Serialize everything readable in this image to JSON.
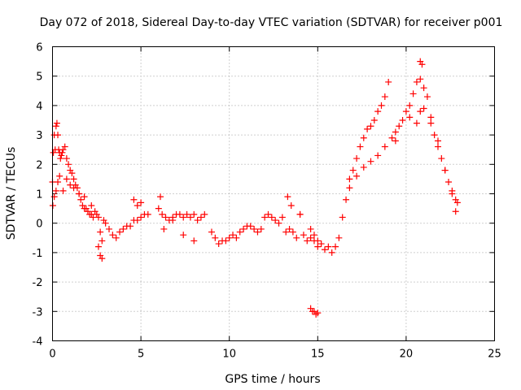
{
  "chart_data": {
    "type": "scatter",
    "title": "Day 072 of 2018, Sidereal Day-to-day VTEC variation (SDTVAR) for receiver p001",
    "xlabel": "GPS time / hours",
    "ylabel": "SDTVAR / TECUs",
    "xlim": [
      0,
      25
    ],
    "ylim": [
      -4,
      6
    ],
    "x_ticks": [
      "0",
      "5",
      "10",
      "15",
      "20",
      "25"
    ],
    "y_ticks": [
      "-4",
      "-3",
      "-2",
      "-1",
      "0",
      "1",
      "2",
      "3",
      "4",
      "5",
      "6"
    ],
    "grid": true,
    "marker": "+",
    "series_color": "#ff0000",
    "series": [
      {
        "name": "SDTVAR",
        "x": [
          0.0,
          0.05,
          0.1,
          0.15,
          0.2,
          0.25,
          0.3,
          0.35,
          0.4,
          0.45,
          0.5,
          0.55,
          0.6,
          0.7,
          0.8,
          0.9,
          1.0,
          1.1,
          1.2,
          1.3,
          1.4,
          1.5,
          1.6,
          1.7,
          1.8,
          1.9,
          2.0,
          2.1,
          2.2,
          2.3,
          2.4,
          2.5,
          2.6,
          2.7,
          2.8,
          2.9,
          3.0,
          3.2,
          3.4,
          3.6,
          3.8,
          4.0,
          4.2,
          4.4,
          4.6,
          4.8,
          5.0,
          5.2,
          5.4,
          6.0,
          6.2,
          6.4,
          6.6,
          6.8,
          7.0,
          7.2,
          7.4,
          7.6,
          7.8,
          8.0,
          8.2,
          8.4,
          8.6,
          9.0,
          9.2,
          9.4,
          9.6,
          9.8,
          10.0,
          10.2,
          10.4,
          10.6,
          10.8,
          11.0,
          11.2,
          11.4,
          11.6,
          11.8,
          12.0,
          12.2,
          12.4,
          12.6,
          12.8,
          13.0,
          13.2,
          13.4,
          13.6,
          13.8,
          14.0,
          14.2,
          14.4,
          14.6,
          14.8,
          15.0,
          15.2,
          15.4,
          15.6,
          15.8,
          16.0,
          16.2,
          16.4,
          16.6,
          16.8,
          17.0,
          17.2,
          17.4,
          17.6,
          17.8,
          18.0,
          18.2,
          18.4,
          18.6,
          18.8,
          19.0,
          19.2,
          19.4,
          19.6,
          19.8,
          20.0,
          20.2,
          20.4,
          20.6,
          20.8,
          21.0,
          21.2,
          21.4,
          21.6,
          21.8,
          22.0,
          22.2,
          22.4,
          22.6,
          22.8,
          22.9,
          0.02,
          0.1,
          0.2,
          0.3,
          0.4,
          0.6,
          0.8,
          1.0,
          1.2,
          1.5,
          1.8,
          2.2,
          2.6,
          2.7,
          2.8,
          4.6,
          4.8,
          5.0,
          6.1,
          6.3,
          6.8,
          7.4,
          8.0,
          13.3,
          13.5,
          14.0,
          14.6,
          14.8,
          15.0,
          16.8,
          17.2,
          17.6,
          18.0,
          18.4,
          18.8,
          19.4,
          20.2,
          20.6,
          20.8,
          21.0,
          21.4,
          21.8,
          22.2,
          22.6,
          22.8,
          14.6,
          14.7,
          14.8,
          14.9,
          15.0,
          20.8,
          20.9
        ],
        "y": [
          1.4,
          2.4,
          3.0,
          2.5,
          3.3,
          3.4,
          3.0,
          2.5,
          2.4,
          2.2,
          2.3,
          2.4,
          2.5,
          2.6,
          2.2,
          2.0,
          1.8,
          1.7,
          1.5,
          1.3,
          1.2,
          1.0,
          0.8,
          0.6,
          0.5,
          0.5,
          0.4,
          0.3,
          0.3,
          0.2,
          0.4,
          0.3,
          0.2,
          -0.3,
          -0.6,
          0.1,
          0.0,
          -0.2,
          -0.4,
          -0.5,
          -0.3,
          -0.2,
          -0.1,
          -0.1,
          0.1,
          0.1,
          0.2,
          0.3,
          0.3,
          0.5,
          0.3,
          0.2,
          0.1,
          0.2,
          0.3,
          0.3,
          0.2,
          0.3,
          0.2,
          0.3,
          0.1,
          0.2,
          0.3,
          -0.3,
          -0.5,
          -0.7,
          -0.6,
          -0.6,
          -0.5,
          -0.4,
          -0.5,
          -0.3,
          -0.2,
          -0.1,
          -0.1,
          -0.2,
          -0.3,
          -0.2,
          0.2,
          0.3,
          0.2,
          0.1,
          0.0,
          0.2,
          -0.3,
          -0.2,
          -0.3,
          -0.5,
          0.3,
          -0.4,
          -0.6,
          -0.5,
          -0.6,
          -0.8,
          -0.7,
          -0.9,
          -0.8,
          -1.0,
          -0.8,
          -0.5,
          0.2,
          0.8,
          1.5,
          1.8,
          2.2,
          2.6,
          2.9,
          3.2,
          3.3,
          3.5,
          3.8,
          4.0,
          4.3,
          4.8,
          2.9,
          3.1,
          3.3,
          3.5,
          3.8,
          4.0,
          4.4,
          4.8,
          4.9,
          4.6,
          4.3,
          3.6,
          3.0,
          2.8,
          2.2,
          1.8,
          1.4,
          1.1,
          0.8,
          0.7,
          0.6,
          0.9,
          1.1,
          1.4,
          1.6,
          1.1,
          1.5,
          1.3,
          1.2,
          1.0,
          0.9,
          0.6,
          -0.8,
          -1.1,
          -1.2,
          0.8,
          0.6,
          0.7,
          0.9,
          -0.2,
          0.1,
          -0.4,
          -0.6,
          0.9,
          0.6,
          0.3,
          -0.2,
          -0.4,
          -0.6,
          1.2,
          1.6,
          1.9,
          2.1,
          2.3,
          2.6,
          2.8,
          3.6,
          3.4,
          3.8,
          3.9,
          3.4,
          2.6,
          1.8,
          1.0,
          0.4,
          -2.9,
          -3.0,
          -3.0,
          -3.1,
          -3.05,
          5.5,
          5.4
        ]
      }
    ]
  }
}
